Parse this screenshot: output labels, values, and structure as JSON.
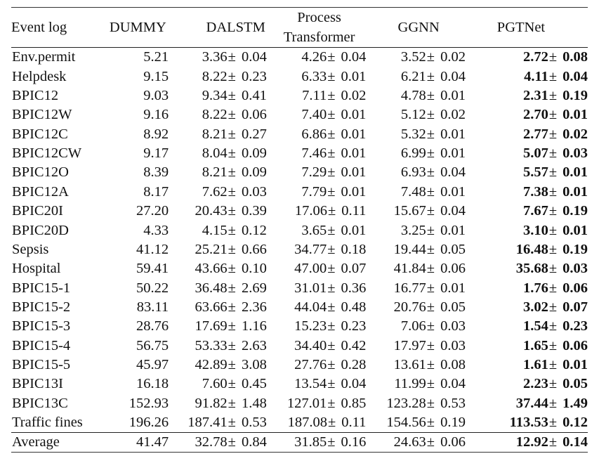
{
  "table": {
    "headers": {
      "event_log": "Event log",
      "dummy": "DUMMY",
      "dalstm": "DALSTM",
      "process_transformer_line1": "Process",
      "process_transformer_line2": "Transformer",
      "ggnn": "GGNN",
      "pgtnet": "PGTNet"
    },
    "pm_symbol": "±",
    "rows": [
      {
        "log": "Env.permit",
        "dummy": "5.21",
        "dalstm": {
          "m": "3.36",
          "s": "0.04"
        },
        "pt": {
          "m": "4.26",
          "s": "0.04"
        },
        "ggnn": {
          "m": "3.52",
          "s": "0.02"
        },
        "pgtnet": {
          "m": "2.72",
          "s": "0.08"
        }
      },
      {
        "log": "Helpdesk",
        "dummy": "9.15",
        "dalstm": {
          "m": "8.22",
          "s": "0.23"
        },
        "pt": {
          "m": "6.33",
          "s": "0.01"
        },
        "ggnn": {
          "m": "6.21",
          "s": "0.04"
        },
        "pgtnet": {
          "m": "4.11",
          "s": "0.04"
        }
      },
      {
        "log": "BPIC12",
        "dummy": "9.03",
        "dalstm": {
          "m": "9.34",
          "s": "0.41"
        },
        "pt": {
          "m": "7.11",
          "s": "0.02"
        },
        "ggnn": {
          "m": "4.78",
          "s": "0.01"
        },
        "pgtnet": {
          "m": "2.31",
          "s": "0.19"
        }
      },
      {
        "log": "BPIC12W",
        "dummy": "9.16",
        "dalstm": {
          "m": "8.22",
          "s": "0.06"
        },
        "pt": {
          "m": "7.40",
          "s": "0.01"
        },
        "ggnn": {
          "m": "5.12",
          "s": "0.02"
        },
        "pgtnet": {
          "m": "2.70",
          "s": "0.01"
        }
      },
      {
        "log": "BPIC12C",
        "dummy": "8.92",
        "dalstm": {
          "m": "8.21",
          "s": "0.27"
        },
        "pt": {
          "m": "6.86",
          "s": "0.01"
        },
        "ggnn": {
          "m": "5.32",
          "s": "0.01"
        },
        "pgtnet": {
          "m": "2.77",
          "s": "0.02"
        }
      },
      {
        "log": "BPIC12CW",
        "dummy": "9.17",
        "dalstm": {
          "m": "8.04",
          "s": "0.09"
        },
        "pt": {
          "m": "7.46",
          "s": "0.01"
        },
        "ggnn": {
          "m": "6.99",
          "s": "0.01"
        },
        "pgtnet": {
          "m": "5.07",
          "s": "0.03"
        }
      },
      {
        "log": "BPIC12O",
        "dummy": "8.39",
        "dalstm": {
          "m": "8.21",
          "s": "0.09"
        },
        "pt": {
          "m": "7.29",
          "s": "0.01"
        },
        "ggnn": {
          "m": "6.93",
          "s": "0.04"
        },
        "pgtnet": {
          "m": "5.57",
          "s": "0.01"
        }
      },
      {
        "log": "BPIC12A",
        "dummy": "8.17",
        "dalstm": {
          "m": "7.62",
          "s": "0.03"
        },
        "pt": {
          "m": "7.79",
          "s": "0.01"
        },
        "ggnn": {
          "m": "7.48",
          "s": "0.01"
        },
        "pgtnet": {
          "m": "7.38",
          "s": "0.01"
        }
      },
      {
        "log": "BPIC20I",
        "dummy": "27.20",
        "dalstm": {
          "m": "20.43",
          "s": "0.39"
        },
        "pt": {
          "m": "17.06",
          "s": "0.11"
        },
        "ggnn": {
          "m": "15.67",
          "s": "0.04"
        },
        "pgtnet": {
          "m": "7.67",
          "s": "0.19"
        }
      },
      {
        "log": "BPIC20D",
        "dummy": "4.33",
        "dalstm": {
          "m": "4.15",
          "s": "0.12"
        },
        "pt": {
          "m": "3.65",
          "s": "0.01"
        },
        "ggnn": {
          "m": "3.25",
          "s": "0.01"
        },
        "pgtnet": {
          "m": "3.10",
          "s": "0.01"
        }
      },
      {
        "log": "Sepsis",
        "dummy": "41.12",
        "dalstm": {
          "m": "25.21",
          "s": "0.66"
        },
        "pt": {
          "m": "34.77",
          "s": "0.18"
        },
        "ggnn": {
          "m": "19.44",
          "s": "0.05"
        },
        "pgtnet": {
          "m": "16.48",
          "s": "0.19"
        }
      },
      {
        "log": "Hospital",
        "dummy": "59.41",
        "dalstm": {
          "m": "43.66",
          "s": "0.10"
        },
        "pt": {
          "m": "47.00",
          "s": "0.07"
        },
        "ggnn": {
          "m": "41.84",
          "s": "0.06"
        },
        "pgtnet": {
          "m": "35.68",
          "s": "0.03"
        }
      },
      {
        "log": "BPIC15-1",
        "dummy": "50.22",
        "dalstm": {
          "m": "36.48",
          "s": "2.69"
        },
        "pt": {
          "m": "31.01",
          "s": "0.36"
        },
        "ggnn": {
          "m": "16.77",
          "s": "0.01"
        },
        "pgtnet": {
          "m": "1.76",
          "s": "0.06"
        }
      },
      {
        "log": "BPIC15-2",
        "dummy": "83.11",
        "dalstm": {
          "m": "63.66",
          "s": "2.36"
        },
        "pt": {
          "m": "44.04",
          "s": "0.48"
        },
        "ggnn": {
          "m": "20.76",
          "s": "0.05"
        },
        "pgtnet": {
          "m": "3.02",
          "s": "0.07"
        }
      },
      {
        "log": "BPIC15-3",
        "dummy": "28.76",
        "dalstm": {
          "m": "17.69",
          "s": "1.16"
        },
        "pt": {
          "m": "15.23",
          "s": "0.23"
        },
        "ggnn": {
          "m": "7.06",
          "s": "0.03"
        },
        "pgtnet": {
          "m": "1.54",
          "s": "0.23"
        }
      },
      {
        "log": "BPIC15-4",
        "dummy": "56.75",
        "dalstm": {
          "m": "53.33",
          "s": "2.63"
        },
        "pt": {
          "m": "34.40",
          "s": "0.42"
        },
        "ggnn": {
          "m": "17.97",
          "s": "0.03"
        },
        "pgtnet": {
          "m": "1.65",
          "s": "0.06"
        }
      },
      {
        "log": "BPIC15-5",
        "dummy": "45.97",
        "dalstm": {
          "m": "42.89",
          "s": "3.08"
        },
        "pt": {
          "m": "27.76",
          "s": "0.28"
        },
        "ggnn": {
          "m": "13.61",
          "s": "0.08"
        },
        "pgtnet": {
          "m": "1.61",
          "s": "0.01"
        }
      },
      {
        "log": "BPIC13I",
        "dummy": "16.18",
        "dalstm": {
          "m": "7.60",
          "s": "0.45"
        },
        "pt": {
          "m": "13.54",
          "s": "0.04"
        },
        "ggnn": {
          "m": "11.99",
          "s": "0.04"
        },
        "pgtnet": {
          "m": "2.23",
          "s": "0.05"
        }
      },
      {
        "log": "BPIC13C",
        "dummy": "152.93",
        "dalstm": {
          "m": "91.82",
          "s": "1.48"
        },
        "pt": {
          "m": "127.01",
          "s": "0.85"
        },
        "ggnn": {
          "m": "123.28",
          "s": "0.53"
        },
        "pgtnet": {
          "m": "37.44",
          "s": "1.49"
        }
      },
      {
        "log": "Traffic fines",
        "dummy": "196.26",
        "dalstm": {
          "m": "187.41",
          "s": "0.53"
        },
        "pt": {
          "m": "187.08",
          "s": "0.11"
        },
        "ggnn": {
          "m": "154.56",
          "s": "0.19"
        },
        "pgtnet": {
          "m": "113.53",
          "s": "0.12"
        }
      }
    ],
    "average": {
      "log": "Average",
      "dummy": "41.47",
      "dalstm": {
        "m": "32.78",
        "s": "0.84"
      },
      "pt": {
        "m": "31.85",
        "s": "0.16"
      },
      "ggnn": {
        "m": "24.63",
        "s": "0.06"
      },
      "pgtnet": {
        "m": "12.92",
        "s": "0.14"
      }
    }
  }
}
